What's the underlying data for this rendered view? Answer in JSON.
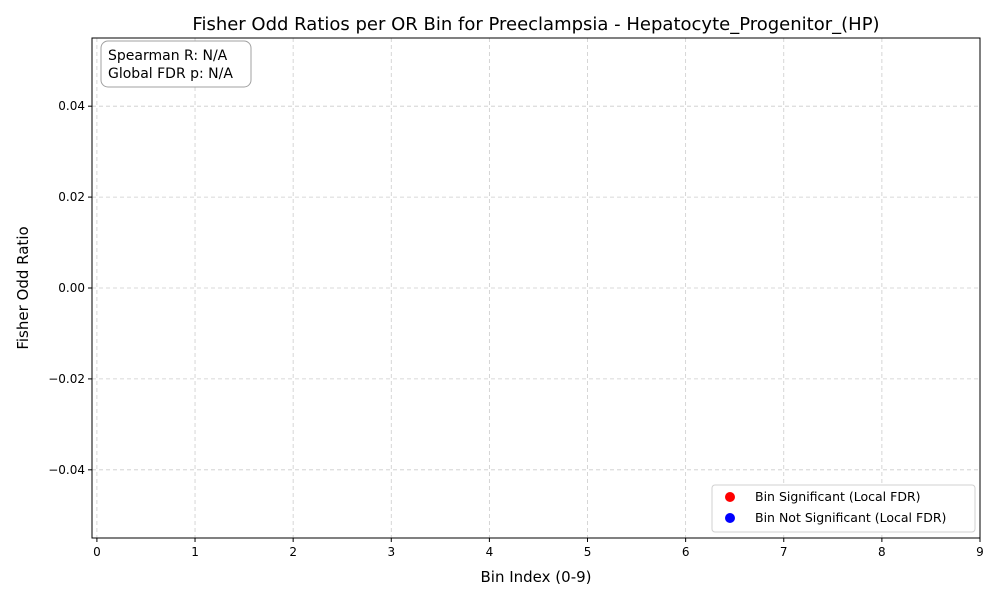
{
  "chart_data": {
    "type": "scatter",
    "title": "Fisher Odd Ratios per OR Bin for Preeclampsia - Hepatocyte_Progenitor_(HP)",
    "xlabel": "Bin Index (0-9)",
    "ylabel": "Fisher Odd Ratio",
    "xlim": [
      -0.05,
      9.0
    ],
    "ylim": [
      -0.055,
      0.055
    ],
    "x_ticks": [
      0,
      1,
      2,
      3,
      4,
      5,
      6,
      7,
      8,
      9
    ],
    "x_tick_labels": [
      "0",
      "1",
      "2",
      "3",
      "4",
      "5",
      "6",
      "7",
      "8",
      "9"
    ],
    "y_ticks": [
      -0.04,
      -0.02,
      0.0,
      0.02,
      0.04
    ],
    "y_tick_labels": [
      "−0.04",
      "−0.02",
      "0.00",
      "0.02",
      "0.04"
    ],
    "grid": true,
    "legend_position": "bottom-right",
    "series": [
      {
        "name": "Bin Significant (Local FDR)",
        "color": "#ff0000",
        "points": []
      },
      {
        "name": "Bin Not Significant (Local FDR)",
        "color": "#0000ff",
        "points": []
      }
    ],
    "annotation": {
      "lines": [
        "Spearman R: N/A",
        "Global FDR p: N/A"
      ],
      "position": "top-left"
    }
  }
}
